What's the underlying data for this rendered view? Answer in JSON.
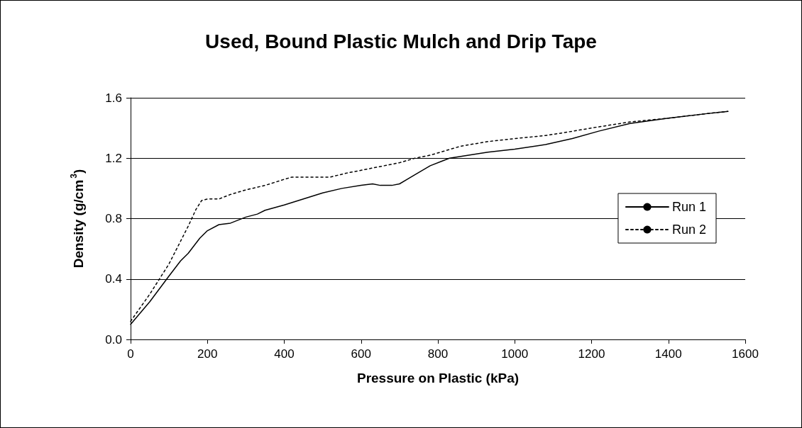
{
  "chart_data": {
    "type": "line",
    "title": "Used, Bound Plastic Mulch and Drip Tape",
    "xlabel": "Pressure on Plastic (kPa)",
    "ylabel": "Density (g/cm$^{3}$)",
    "xlim": [
      0,
      1600
    ],
    "xticks": [
      0,
      200,
      400,
      600,
      800,
      1000,
      1200,
      1400,
      1600
    ],
    "ylim": [
      0,
      1.6
    ],
    "yticks": [
      {
        "value": 0,
        "label": "0.0"
      },
      0.4,
      0.8,
      1.2,
      1.6
    ],
    "grid": "y",
    "legend": "right",
    "marker": "none",
    "series": [
      {
        "name": "Run 1",
        "color": "#000000",
        "line_style": "solid",
        "x": [
          0,
          50,
          100,
          130,
          150,
          180,
          200,
          230,
          260,
          300,
          330,
          350,
          400,
          450,
          500,
          550,
          600,
          630,
          650,
          680,
          700,
          740,
          780,
          810,
          830,
          880,
          930,
          1000,
          1080,
          1150,
          1220,
          1300,
          1400,
          1500,
          1555
        ],
        "values": [
          0.1,
          0.25,
          0.42,
          0.52,
          0.57,
          0.67,
          0.72,
          0.76,
          0.77,
          0.81,
          0.83,
          0.855,
          0.89,
          0.93,
          0.97,
          1.0,
          1.02,
          1.03,
          1.02,
          1.02,
          1.03,
          1.09,
          1.15,
          1.18,
          1.2,
          1.22,
          1.24,
          1.26,
          1.29,
          1.33,
          1.38,
          1.43,
          1.465,
          1.495,
          1.51
        ]
      },
      {
        "name": "Run 2",
        "color": "#000000",
        "line_style": "dashed",
        "x": [
          0,
          50,
          100,
          150,
          170,
          185,
          200,
          230,
          260,
          300,
          350,
          400,
          420,
          520,
          560,
          620,
          700,
          740,
          780,
          860,
          930,
          1000,
          1080,
          1130,
          1200,
          1300,
          1400,
          1500,
          1555
        ],
        "values": [
          0.12,
          0.3,
          0.5,
          0.75,
          0.86,
          0.92,
          0.93,
          0.93,
          0.96,
          0.99,
          1.02,
          1.06,
          1.075,
          1.075,
          1.1,
          1.13,
          1.17,
          1.2,
          1.22,
          1.28,
          1.31,
          1.33,
          1.35,
          1.37,
          1.4,
          1.44,
          1.465,
          1.495,
          1.51
        ]
      }
    ]
  }
}
